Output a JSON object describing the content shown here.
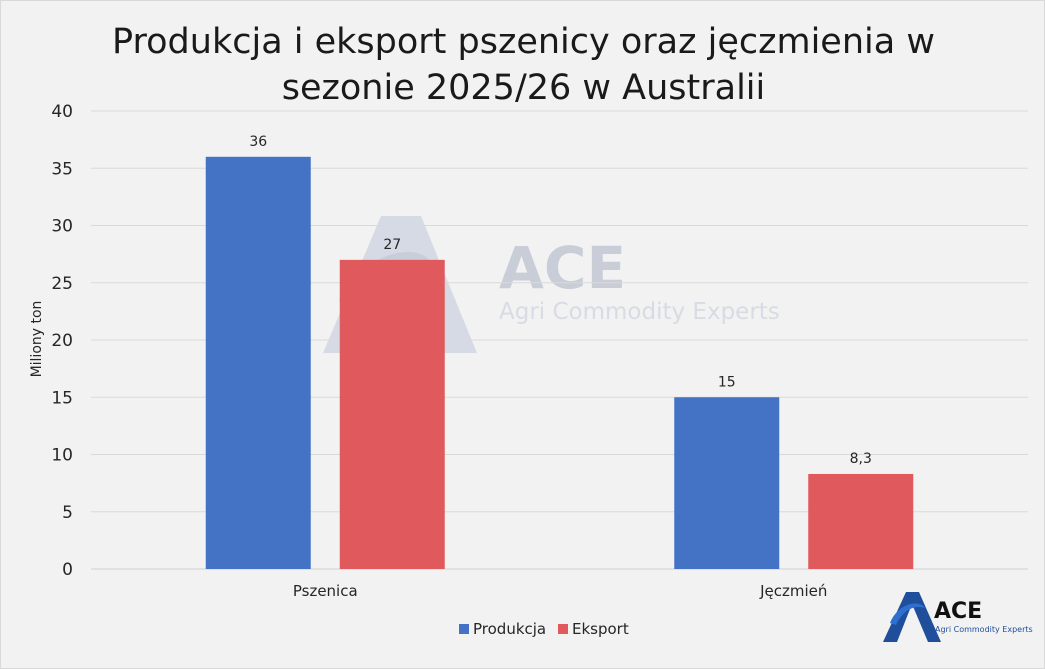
{
  "chart_data": {
    "type": "bar",
    "title": "Produkcja i eksport pszenicy oraz jęczmienia w sezonie 2025/26 w Australii",
    "ylabel": "Miliony ton",
    "xlabel": "",
    "ylim": [
      0,
      40
    ],
    "yticks": [
      0,
      5,
      10,
      15,
      20,
      25,
      30,
      35,
      40
    ],
    "categories": [
      "Pszenica",
      "Jęczmień"
    ],
    "series": [
      {
        "name": "Produkcja",
        "values": [
          36,
          15
        ],
        "labels": [
          "36",
          "15"
        ],
        "color": "#4472c4"
      },
      {
        "name": "Eksport",
        "values": [
          27,
          8.3
        ],
        "labels": [
          "27",
          "8,3"
        ],
        "color": "#e05a5d"
      }
    ],
    "grid": true,
    "legend_position": "bottom"
  },
  "watermark": {
    "title": "ACE",
    "subtitle": "Agri Commodity Experts"
  },
  "logo": {
    "title": "ACE",
    "subtitle": "Agri Commodity Experts",
    "icon": "ace-logo-icon"
  }
}
